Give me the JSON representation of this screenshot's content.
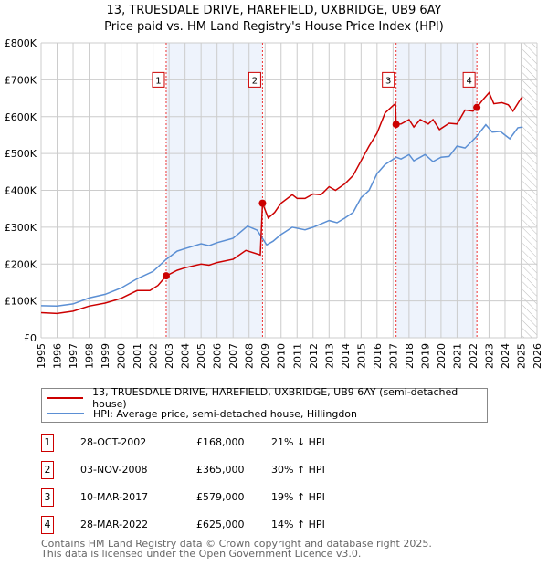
{
  "header": {
    "title": "13, TRUESDALE DRIVE, HAREFIELD, UXBRIDGE, UB9 6AY",
    "subtitle": "Price paid vs. HM Land Registry's House Price Index (HPI)"
  },
  "colors": {
    "property": "#cc0000",
    "hpi": "#5b8fd4",
    "band": "#eef3fc",
    "grid": "#cccccc"
  },
  "chart_data": {
    "type": "line",
    "title": "Price paid vs. HM Land Registry's House Price Index (HPI)",
    "xlim": [
      1995,
      2026
    ],
    "ylim": [
      0,
      800000
    ],
    "y_ticks": [
      {
        "v": 0,
        "label": "£0"
      },
      {
        "v": 100000,
        "label": "£100K"
      },
      {
        "v": 200000,
        "label": "£200K"
      },
      {
        "v": 300000,
        "label": "£300K"
      },
      {
        "v": 400000,
        "label": "£400K"
      },
      {
        "v": 500000,
        "label": "£500K"
      },
      {
        "v": 600000,
        "label": "£600K"
      },
      {
        "v": 700000,
        "label": "£700K"
      },
      {
        "v": 800000,
        "label": "£800K"
      }
    ],
    "x_ticks": [
      "1995",
      "1996",
      "1997",
      "1998",
      "1999",
      "2000",
      "2001",
      "2002",
      "2003",
      "2004",
      "2005",
      "2006",
      "2007",
      "2008",
      "2009",
      "2010",
      "2011",
      "2012",
      "2013",
      "2014",
      "2015",
      "2016",
      "2017",
      "2018",
      "2019",
      "2020",
      "2021",
      "2022",
      "2023",
      "2024",
      "2025",
      "2026"
    ],
    "grid": true,
    "forecast_from": 2025.1,
    "series": [
      {
        "name": "13, TRUESDALE DRIVE, HAREFIELD, UXBRIDGE, UB9 6AY (semi-detached house)",
        "color": "#cc0000",
        "points": [
          [
            1995,
            68
          ],
          [
            1996,
            66
          ],
          [
            1997,
            72
          ],
          [
            1998,
            86
          ],
          [
            1999,
            94
          ],
          [
            2000,
            107
          ],
          [
            2001,
            128
          ],
          [
            2001.8,
            128
          ],
          [
            2002.3,
            142
          ],
          [
            2002.82,
            168
          ],
          [
            2003.5,
            183
          ],
          [
            2004,
            190
          ],
          [
            2005,
            200
          ],
          [
            2005.5,
            197
          ],
          [
            2006,
            204
          ],
          [
            2007,
            213
          ],
          [
            2007.8,
            237
          ],
          [
            2008.7,
            225
          ],
          [
            2008.84,
            365
          ],
          [
            2009.2,
            325
          ],
          [
            2009.6,
            340
          ],
          [
            2010,
            365
          ],
          [
            2010.7,
            388
          ],
          [
            2011,
            378
          ],
          [
            2011.5,
            378
          ],
          [
            2012,
            390
          ],
          [
            2012.5,
            388
          ],
          [
            2013,
            410
          ],
          [
            2013.4,
            400
          ],
          [
            2014,
            418
          ],
          [
            2014.5,
            440
          ],
          [
            2015,
            480
          ],
          [
            2015.5,
            520
          ],
          [
            2016,
            555
          ],
          [
            2016.5,
            610
          ],
          [
            2017,
            630
          ],
          [
            2017.15,
            635
          ],
          [
            2017.19,
            579
          ],
          [
            2017.5,
            580
          ],
          [
            2018,
            592
          ],
          [
            2018.3,
            572
          ],
          [
            2018.7,
            592
          ],
          [
            2019.2,
            580
          ],
          [
            2019.5,
            592
          ],
          [
            2019.9,
            565
          ],
          [
            2020.5,
            582
          ],
          [
            2021,
            580
          ],
          [
            2021.5,
            618
          ],
          [
            2022,
            615
          ],
          [
            2022.24,
            625
          ],
          [
            2022.6,
            645
          ],
          [
            2023,
            665
          ],
          [
            2023.3,
            635
          ],
          [
            2023.8,
            638
          ],
          [
            2024.2,
            632
          ],
          [
            2024.5,
            615
          ],
          [
            2025,
            650
          ],
          [
            2025.1,
            653
          ]
        ]
      },
      {
        "name": "HPI: Average price, semi-detached house, Hillingdon",
        "color": "#5b8fd4",
        "points": [
          [
            1995,
            87
          ],
          [
            1996,
            86
          ],
          [
            1997,
            92
          ],
          [
            1998,
            108
          ],
          [
            1999,
            118
          ],
          [
            2000,
            135
          ],
          [
            2001,
            160
          ],
          [
            2002,
            180
          ],
          [
            2002.8,
            212
          ],
          [
            2003.5,
            235
          ],
          [
            2004,
            242
          ],
          [
            2005,
            255
          ],
          [
            2005.5,
            250
          ],
          [
            2006,
            258
          ],
          [
            2007,
            270
          ],
          [
            2007.9,
            303
          ],
          [
            2008.5,
            292
          ],
          [
            2009.1,
            252
          ],
          [
            2009.5,
            262
          ],
          [
            2010,
            280
          ],
          [
            2010.7,
            300
          ],
          [
            2011.5,
            293
          ],
          [
            2012,
            300
          ],
          [
            2013,
            318
          ],
          [
            2013.5,
            312
          ],
          [
            2014,
            325
          ],
          [
            2014.5,
            340
          ],
          [
            2015,
            380
          ],
          [
            2015.5,
            400
          ],
          [
            2016,
            445
          ],
          [
            2016.5,
            470
          ],
          [
            2017.2,
            490
          ],
          [
            2017.5,
            485
          ],
          [
            2018,
            497
          ],
          [
            2018.3,
            480
          ],
          [
            2019,
            497
          ],
          [
            2019.5,
            478
          ],
          [
            2020,
            490
          ],
          [
            2020.5,
            492
          ],
          [
            2021,
            520
          ],
          [
            2021.5,
            515
          ],
          [
            2022.2,
            545
          ],
          [
            2022.8,
            578
          ],
          [
            2023.2,
            558
          ],
          [
            2023.7,
            560
          ],
          [
            2024.3,
            540
          ],
          [
            2024.8,
            570
          ],
          [
            2025.1,
            572
          ]
        ]
      }
    ],
    "sales": [
      {
        "id": "1",
        "x": 2002.82,
        "price": 168000,
        "date": "28-OCT-2002",
        "price_label": "£168,000",
        "hpi_label": "21% ↓ HPI"
      },
      {
        "id": "2",
        "x": 2008.84,
        "price": 365000,
        "date": "03-NOV-2008",
        "price_label": "£365,000",
        "hpi_label": "30% ↑ HPI"
      },
      {
        "id": "3",
        "x": 2017.19,
        "price": 579000,
        "date": "10-MAR-2017",
        "price_label": "£579,000",
        "hpi_label": "19% ↑ HPI"
      },
      {
        "id": "4",
        "x": 2022.24,
        "price": 625000,
        "date": "28-MAR-2022",
        "price_label": "£625,000",
        "hpi_label": "14% ↑ HPI"
      }
    ],
    "legend_position": "below"
  },
  "legend": {
    "property": "13, TRUESDALE DRIVE, HAREFIELD, UXBRIDGE, UB9 6AY (semi-detached house)",
    "hpi": "HPI: Average price, semi-detached house, Hillingdon"
  },
  "footer": {
    "line1": "Contains HM Land Registry data © Crown copyright and database right 2025.",
    "line2": "This data is licensed under the Open Government Licence v3.0."
  }
}
